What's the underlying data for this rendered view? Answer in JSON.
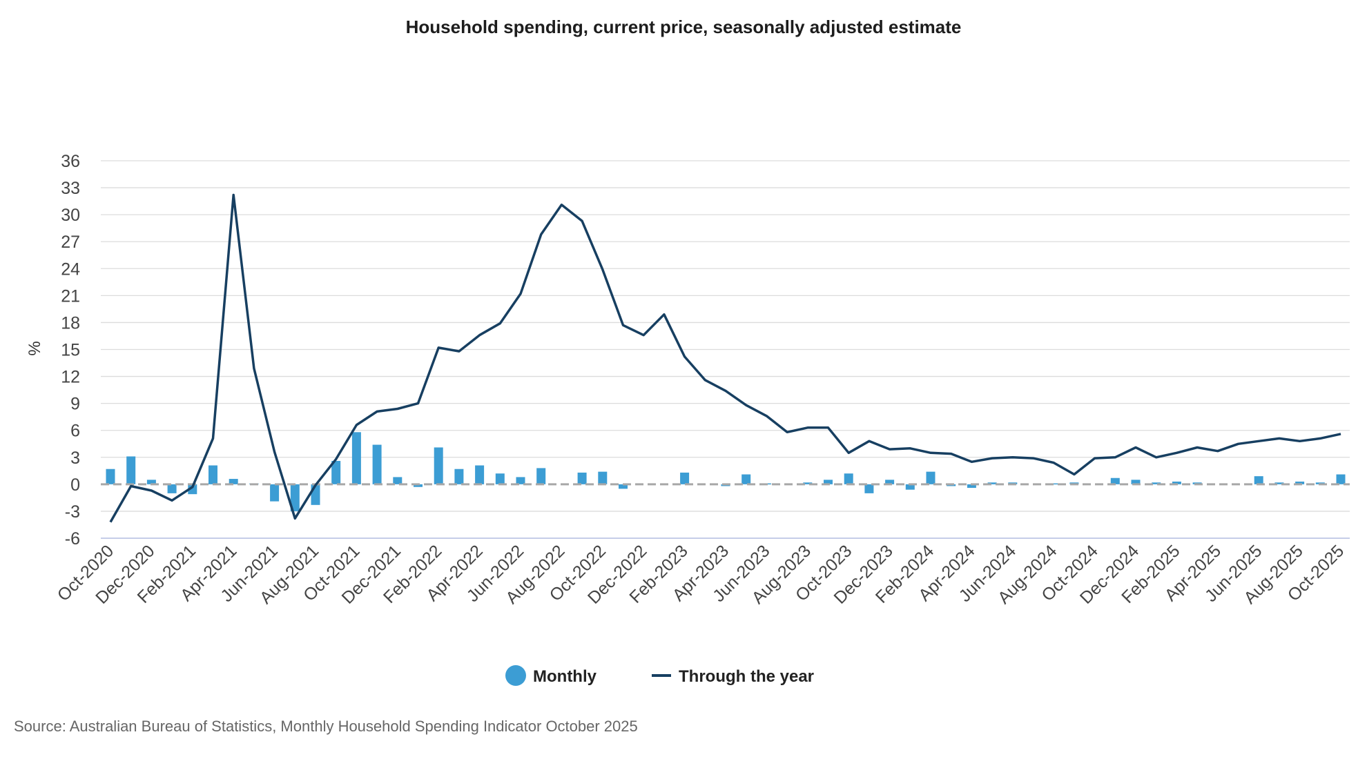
{
  "chart_data": {
    "type": "bar",
    "title": "Household spending, current price, seasonally adjusted estimate",
    "ylabel": "%",
    "xlabel": "",
    "ylim": [
      -6,
      36
    ],
    "yticks": [
      -6,
      -3,
      0,
      3,
      6,
      9,
      12,
      15,
      18,
      21,
      24,
      27,
      30,
      33,
      36
    ],
    "grid": true,
    "legend_position": "bottom",
    "colors": {
      "monthly": "#3c9dd4",
      "through_year": "#173f61",
      "grid": "#dcdcdc",
      "zero": "#a8a8a8",
      "axis": "#c5cde8"
    },
    "categories": [
      "Oct-2020",
      "Nov-2020",
      "Dec-2020",
      "Jan-2021",
      "Feb-2021",
      "Mar-2021",
      "Apr-2021",
      "May-2021",
      "Jun-2021",
      "Jul-2021",
      "Aug-2021",
      "Sep-2021",
      "Oct-2021",
      "Nov-2021",
      "Dec-2021",
      "Jan-2022",
      "Feb-2022",
      "Mar-2022",
      "Apr-2022",
      "May-2022",
      "Jun-2022",
      "Jul-2022",
      "Aug-2022",
      "Sep-2022",
      "Oct-2022",
      "Nov-2022",
      "Dec-2022",
      "Jan-2023",
      "Feb-2023",
      "Mar-2023",
      "Apr-2023",
      "May-2023",
      "Jun-2023",
      "Jul-2023",
      "Aug-2023",
      "Sep-2023",
      "Oct-2023",
      "Nov-2023",
      "Dec-2023",
      "Jan-2024",
      "Feb-2024",
      "Mar-2024",
      "Apr-2024",
      "May-2024",
      "Jun-2024",
      "Jul-2024",
      "Aug-2024",
      "Sep-2024",
      "Oct-2024",
      "Nov-2024",
      "Dec-2024",
      "Jan-2025",
      "Feb-2025",
      "Mar-2025",
      "Apr-2025",
      "May-2025",
      "Jun-2025",
      "Jul-2025",
      "Aug-2025",
      "Sep-2025",
      "Oct-2025"
    ],
    "tick_labels": [
      "Oct-2020",
      "Dec-2020",
      "Feb-2021",
      "Apr-2021",
      "Jun-2021",
      "Aug-2021",
      "Oct-2021",
      "Dec-2021",
      "Feb-2022",
      "Apr-2022",
      "Jun-2022",
      "Aug-2022",
      "Oct-2022",
      "Dec-2022",
      "Feb-2023",
      "Apr-2023",
      "Jun-2023",
      "Aug-2023",
      "Oct-2023",
      "Dec-2023",
      "Feb-2024",
      "Apr-2024",
      "Jun-2024",
      "Aug-2024",
      "Oct-2024",
      "Dec-2024",
      "Feb-2025",
      "Apr-2025",
      "Jun-2025",
      "Aug-2025",
      "Oct-2025"
    ],
    "series": [
      {
        "name": "Monthly",
        "kind": "bar",
        "values": [
          1.7,
          3.1,
          0.5,
          -1.0,
          -1.1,
          2.1,
          0.6,
          0.1,
          -1.9,
          -3.0,
          -2.3,
          2.6,
          5.8,
          4.4,
          0.8,
          -0.3,
          4.1,
          1.7,
          2.1,
          1.2,
          0.8,
          1.8,
          0.0,
          1.3,
          1.4,
          -0.5,
          0.0,
          0.0,
          1.3,
          0.0,
          -0.2,
          1.1,
          0.1,
          0.0,
          0.2,
          0.5,
          1.2,
          -1.0,
          0.5,
          -0.6,
          1.4,
          -0.2,
          -0.4,
          0.2,
          0.2,
          0.0,
          0.1,
          0.2,
          0.0,
          0.7,
          0.5,
          0.2,
          0.3,
          0.2,
          0.0,
          0.0,
          0.9,
          0.2,
          0.3,
          0.2,
          1.1
        ]
      },
      {
        "name": "Through the year",
        "kind": "line",
        "values": [
          -4.2,
          -0.2,
          -0.7,
          -1.8,
          -0.3,
          5.1,
          32.2,
          12.9,
          3.6,
          -3.8,
          -0.1,
          2.8,
          6.6,
          8.1,
          8.4,
          9.0,
          15.2,
          14.8,
          16.6,
          17.9,
          21.2,
          27.8,
          31.1,
          29.3,
          23.9,
          17.7,
          16.6,
          18.9,
          14.2,
          11.6,
          10.4,
          8.8,
          7.6,
          5.8,
          6.3,
          6.3,
          3.5,
          4.8,
          3.9,
          4.0,
          3.5,
          3.4,
          2.5,
          2.9,
          3.0,
          2.9,
          2.4,
          1.1,
          2.9,
          3.0,
          4.1,
          3.0,
          3.5,
          4.1,
          3.7,
          4.5,
          4.8,
          5.1,
          4.8,
          5.1,
          5.6
        ]
      }
    ]
  },
  "legend": {
    "monthly_label": "Monthly",
    "through_year_label": "Through the year"
  },
  "source": "Source: Australian Bureau of Statistics, Monthly Household Spending Indicator October 2025"
}
